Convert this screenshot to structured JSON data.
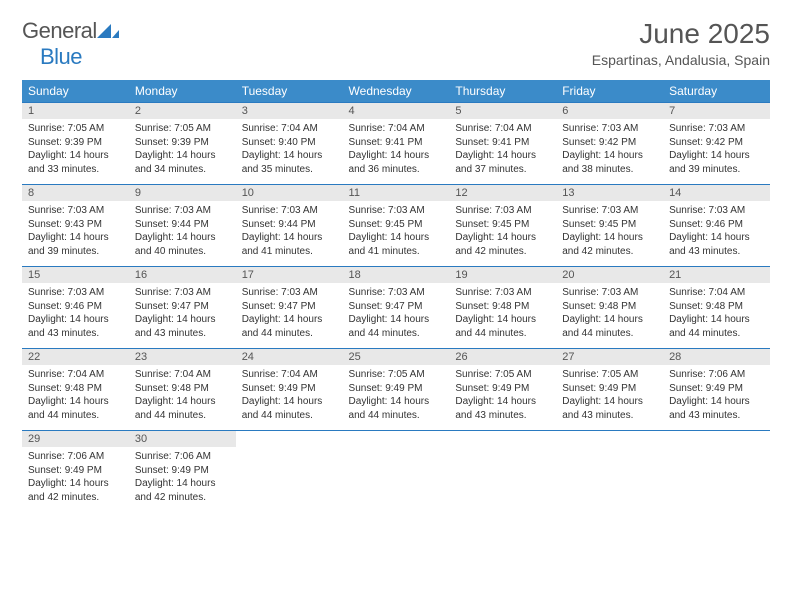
{
  "logo": {
    "general": "General",
    "blue": "Blue"
  },
  "title": {
    "month": "June 2025",
    "location": "Espartinas, Andalusia, Spain"
  },
  "colors": {
    "accent": "#3b8bc9",
    "border": "#2a7ac0",
    "daynum_bg": "#e8e8e8",
    "text": "#333333"
  },
  "day_headers": [
    "Sunday",
    "Monday",
    "Tuesday",
    "Wednesday",
    "Thursday",
    "Friday",
    "Saturday"
  ],
  "weeks": [
    [
      {
        "n": "1",
        "sr": "Sunrise: 7:05 AM",
        "ss": "Sunset: 9:39 PM",
        "dl": "Daylight: 14 hours and 33 minutes."
      },
      {
        "n": "2",
        "sr": "Sunrise: 7:05 AM",
        "ss": "Sunset: 9:39 PM",
        "dl": "Daylight: 14 hours and 34 minutes."
      },
      {
        "n": "3",
        "sr": "Sunrise: 7:04 AM",
        "ss": "Sunset: 9:40 PM",
        "dl": "Daylight: 14 hours and 35 minutes."
      },
      {
        "n": "4",
        "sr": "Sunrise: 7:04 AM",
        "ss": "Sunset: 9:41 PM",
        "dl": "Daylight: 14 hours and 36 minutes."
      },
      {
        "n": "5",
        "sr": "Sunrise: 7:04 AM",
        "ss": "Sunset: 9:41 PM",
        "dl": "Daylight: 14 hours and 37 minutes."
      },
      {
        "n": "6",
        "sr": "Sunrise: 7:03 AM",
        "ss": "Sunset: 9:42 PM",
        "dl": "Daylight: 14 hours and 38 minutes."
      },
      {
        "n": "7",
        "sr": "Sunrise: 7:03 AM",
        "ss": "Sunset: 9:42 PM",
        "dl": "Daylight: 14 hours and 39 minutes."
      }
    ],
    [
      {
        "n": "8",
        "sr": "Sunrise: 7:03 AM",
        "ss": "Sunset: 9:43 PM",
        "dl": "Daylight: 14 hours and 39 minutes."
      },
      {
        "n": "9",
        "sr": "Sunrise: 7:03 AM",
        "ss": "Sunset: 9:44 PM",
        "dl": "Daylight: 14 hours and 40 minutes."
      },
      {
        "n": "10",
        "sr": "Sunrise: 7:03 AM",
        "ss": "Sunset: 9:44 PM",
        "dl": "Daylight: 14 hours and 41 minutes."
      },
      {
        "n": "11",
        "sr": "Sunrise: 7:03 AM",
        "ss": "Sunset: 9:45 PM",
        "dl": "Daylight: 14 hours and 41 minutes."
      },
      {
        "n": "12",
        "sr": "Sunrise: 7:03 AM",
        "ss": "Sunset: 9:45 PM",
        "dl": "Daylight: 14 hours and 42 minutes."
      },
      {
        "n": "13",
        "sr": "Sunrise: 7:03 AM",
        "ss": "Sunset: 9:45 PM",
        "dl": "Daylight: 14 hours and 42 minutes."
      },
      {
        "n": "14",
        "sr": "Sunrise: 7:03 AM",
        "ss": "Sunset: 9:46 PM",
        "dl": "Daylight: 14 hours and 43 minutes."
      }
    ],
    [
      {
        "n": "15",
        "sr": "Sunrise: 7:03 AM",
        "ss": "Sunset: 9:46 PM",
        "dl": "Daylight: 14 hours and 43 minutes."
      },
      {
        "n": "16",
        "sr": "Sunrise: 7:03 AM",
        "ss": "Sunset: 9:47 PM",
        "dl": "Daylight: 14 hours and 43 minutes."
      },
      {
        "n": "17",
        "sr": "Sunrise: 7:03 AM",
        "ss": "Sunset: 9:47 PM",
        "dl": "Daylight: 14 hours and 44 minutes."
      },
      {
        "n": "18",
        "sr": "Sunrise: 7:03 AM",
        "ss": "Sunset: 9:47 PM",
        "dl": "Daylight: 14 hours and 44 minutes."
      },
      {
        "n": "19",
        "sr": "Sunrise: 7:03 AM",
        "ss": "Sunset: 9:48 PM",
        "dl": "Daylight: 14 hours and 44 minutes."
      },
      {
        "n": "20",
        "sr": "Sunrise: 7:03 AM",
        "ss": "Sunset: 9:48 PM",
        "dl": "Daylight: 14 hours and 44 minutes."
      },
      {
        "n": "21",
        "sr": "Sunrise: 7:04 AM",
        "ss": "Sunset: 9:48 PM",
        "dl": "Daylight: 14 hours and 44 minutes."
      }
    ],
    [
      {
        "n": "22",
        "sr": "Sunrise: 7:04 AM",
        "ss": "Sunset: 9:48 PM",
        "dl": "Daylight: 14 hours and 44 minutes."
      },
      {
        "n": "23",
        "sr": "Sunrise: 7:04 AM",
        "ss": "Sunset: 9:48 PM",
        "dl": "Daylight: 14 hours and 44 minutes."
      },
      {
        "n": "24",
        "sr": "Sunrise: 7:04 AM",
        "ss": "Sunset: 9:49 PM",
        "dl": "Daylight: 14 hours and 44 minutes."
      },
      {
        "n": "25",
        "sr": "Sunrise: 7:05 AM",
        "ss": "Sunset: 9:49 PM",
        "dl": "Daylight: 14 hours and 44 minutes."
      },
      {
        "n": "26",
        "sr": "Sunrise: 7:05 AM",
        "ss": "Sunset: 9:49 PM",
        "dl": "Daylight: 14 hours and 43 minutes."
      },
      {
        "n": "27",
        "sr": "Sunrise: 7:05 AM",
        "ss": "Sunset: 9:49 PM",
        "dl": "Daylight: 14 hours and 43 minutes."
      },
      {
        "n": "28",
        "sr": "Sunrise: 7:06 AM",
        "ss": "Sunset: 9:49 PM",
        "dl": "Daylight: 14 hours and 43 minutes."
      }
    ],
    [
      {
        "n": "29",
        "sr": "Sunrise: 7:06 AM",
        "ss": "Sunset: 9:49 PM",
        "dl": "Daylight: 14 hours and 42 minutes."
      },
      {
        "n": "30",
        "sr": "Sunrise: 7:06 AM",
        "ss": "Sunset: 9:49 PM",
        "dl": "Daylight: 14 hours and 42 minutes."
      },
      null,
      null,
      null,
      null,
      null
    ]
  ]
}
